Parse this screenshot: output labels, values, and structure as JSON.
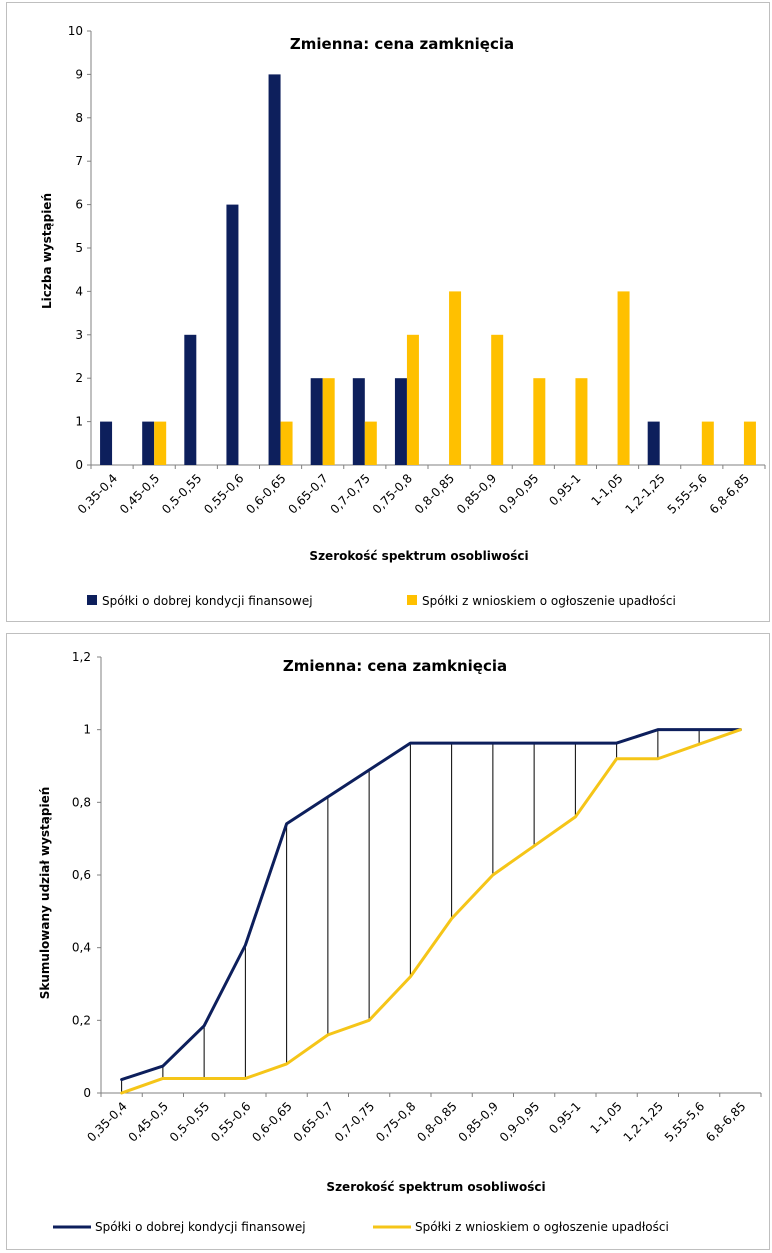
{
  "chart_data": [
    {
      "type": "bar",
      "title": "Zmienna: cena zamknięcia",
      "xlabel": "Szerokość spektrum osobliwości",
      "ylabel": "Liczba wystąpień",
      "ylim": [
        0,
        10
      ],
      "yticks": [
        "0",
        "1",
        "2",
        "3",
        "4",
        "5",
        "6",
        "7",
        "8",
        "9",
        "10"
      ],
      "grid": false,
      "legend_position": "bottom",
      "categories": [
        "0,35-0,4",
        "0,45-0,5",
        "0,5-0,55",
        "0,55-0,6",
        "0,6-0,65",
        "0,65-0,7",
        "0,7-0,75",
        "0,75-0,8",
        "0,8-0,85",
        "0,85-0,9",
        "0,9-0,95",
        "0,95-1",
        "1-1,05",
        "1,2-1,25",
        "5,55-5,6",
        "6,8-6,85"
      ],
      "series": [
        {
          "name": "Spółki o dobrej kondycji finansowej",
          "color": "#0d1f5c",
          "values": [
            1,
            1,
            3,
            6,
            9,
            2,
            2,
            2,
            0,
            0,
            0,
            0,
            0,
            1,
            0,
            0
          ]
        },
        {
          "name": "Spółki z wnioskiem o ogłoszenie upadłości",
          "color": "#ffc000",
          "values": [
            0,
            1,
            0,
            0,
            1,
            2,
            1,
            3,
            4,
            3,
            2,
            2,
            4,
            0,
            1,
            1
          ]
        }
      ]
    },
    {
      "type": "line",
      "title": "Zmienna: cena zamknięcia",
      "xlabel": "Szerokość spektrum osobliwości",
      "ylabel": "Skumulowany udział wystąpień",
      "ylim": [
        0,
        1.2
      ],
      "yticks": [
        "0",
        "0,2",
        "0,4",
        "0,6",
        "0,8",
        "1",
        "1,2"
      ],
      "grid": false,
      "legend_position": "bottom",
      "categories": [
        "0,35-0,4",
        "0,45-0,5",
        "0,5-0,55",
        "0,55-0,6",
        "0,6-0,65",
        "0,65-0,7",
        "0,7-0,75",
        "0,75-0,8",
        "0,8-0,85",
        "0,85-0,9",
        "0,9-0,95",
        "0,95-1",
        "1-1,05",
        "1,2-1,25",
        "5,55-5,6",
        "6,8-6,85"
      ],
      "series": [
        {
          "name": "Spółki o dobrej kondycji finansowej",
          "color": "#0d1f5c",
          "values": [
            0.037,
            0.074,
            0.185,
            0.407,
            0.741,
            0.815,
            0.889,
            0.963,
            0.963,
            0.963,
            0.963,
            0.963,
            0.963,
            1.0,
            1.0,
            1.0
          ]
        },
        {
          "name": "Spółki z wnioskiem o ogłoszenie upadłości",
          "color": "#f5c518",
          "values": [
            0.0,
            0.04,
            0.04,
            0.04,
            0.08,
            0.16,
            0.2,
            0.32,
            0.48,
            0.6,
            0.68,
            0.76,
            0.92,
            0.92,
            0.96,
            1.0
          ]
        }
      ]
    }
  ]
}
